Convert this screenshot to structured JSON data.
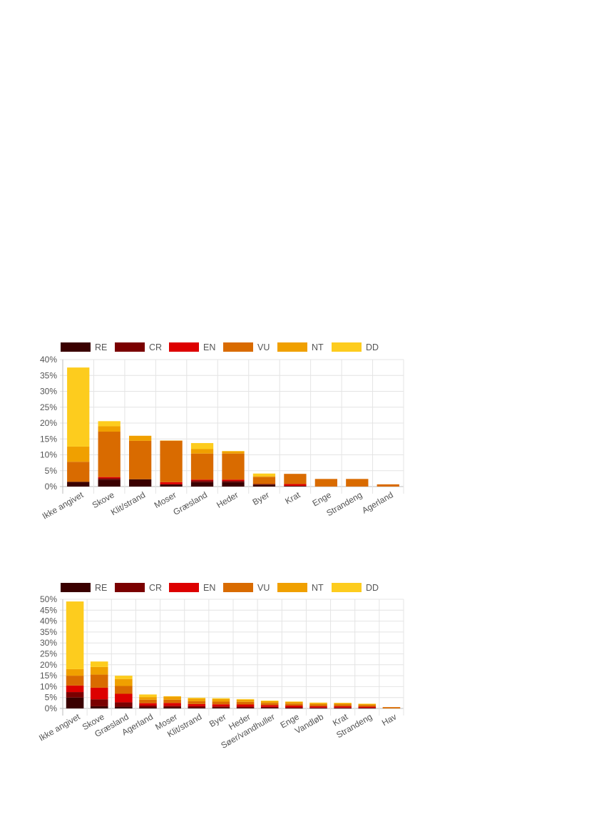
{
  "legend": [
    "RE",
    "CR",
    "EN",
    "VU",
    "NT",
    "DD"
  ],
  "colors": {
    "RE": "#3a0000",
    "CR": "#7a0000",
    "EN": "#dd0000",
    "VU": "#d96b00",
    "NT": "#f0a000",
    "DD": "#fdcc1e"
  },
  "chart_data": [
    {
      "type": "bar",
      "stacked": true,
      "legend_position": "top-left",
      "grid": true,
      "ylim": [
        0,
        40
      ],
      "yticks": [
        "0%",
        "5%",
        "10%",
        "15%",
        "20%",
        "25%",
        "30%",
        "35%",
        "40%"
      ],
      "categories": [
        "Ikke angivet",
        "Skove",
        "Klit/strand",
        "Moser",
        "Græsland",
        "Heder",
        "Byer",
        "Krat",
        "Enge",
        "Strandeng",
        "Agerland"
      ],
      "series": [
        {
          "name": "RE",
          "values": [
            1.5,
            2.2,
            2.3,
            0.7,
            1.4,
            1.4,
            0.6,
            0.2,
            0,
            0,
            0
          ]
        },
        {
          "name": "CR",
          "values": [
            0,
            0.4,
            0,
            0,
            0.5,
            0.4,
            0.2,
            0,
            0,
            0,
            0
          ]
        },
        {
          "name": "EN",
          "values": [
            0,
            0.4,
            0,
            0.7,
            0.3,
            0.4,
            0,
            0.6,
            0,
            0,
            0
          ]
        },
        {
          "name": "VU",
          "values": [
            6.3,
            14.3,
            12.1,
            13.0,
            8.2,
            8.2,
            2.2,
            3.2,
            2.4,
            2.4,
            0.7
          ]
        },
        {
          "name": "NT",
          "values": [
            4.8,
            1.7,
            1.6,
            0.1,
            1.4,
            0.7,
            0.3,
            0,
            0,
            0,
            0
          ]
        },
        {
          "name": "DD",
          "values": [
            24.9,
            1.6,
            0,
            0,
            1.9,
            0.1,
            0.8,
            0,
            0,
            0,
            0
          ]
        }
      ]
    },
    {
      "type": "bar",
      "stacked": true,
      "legend_position": "top-left",
      "grid": true,
      "ylim": [
        0,
        50
      ],
      "yticks": [
        "0%",
        "5%",
        "10%",
        "15%",
        "20%",
        "25%",
        "30%",
        "35%",
        "40%",
        "45%",
        "50%"
      ],
      "categories": [
        "Ikke angivet",
        "Skove",
        "Græsland",
        "Agerland",
        "Moser",
        "Klit/strand",
        "Byer",
        "Heder",
        "Søer/vandhuller",
        "Enge",
        "Vandløb",
        "Krat",
        "Strandeng",
        "Hav"
      ],
      "series": [
        {
          "name": "RE",
          "values": [
            5.0,
            1.0,
            0.8,
            0.5,
            0.5,
            0.3,
            0.3,
            0.2,
            0.2,
            0.1,
            0.1,
            0.1,
            0.1,
            0
          ]
        },
        {
          "name": "CR",
          "values": [
            2.5,
            3.2,
            2.0,
            0.8,
            0.7,
            0.7,
            0.6,
            0.6,
            0.5,
            0.4,
            0.3,
            0.3,
            0.2,
            0
          ]
        },
        {
          "name": "EN",
          "values": [
            3.0,
            5.3,
            3.9,
            1.1,
            1.3,
            1.0,
            1.0,
            1.0,
            0.8,
            0.8,
            0.6,
            0.6,
            0.5,
            0
          ]
        },
        {
          "name": "VU",
          "values": [
            4.5,
            6.0,
            3.6,
            1.6,
            1.5,
            1.3,
            1.2,
            1.2,
            1.0,
            0.9,
            0.8,
            0.8,
            0.7,
            0.6
          ]
        },
        {
          "name": "NT",
          "values": [
            3.0,
            3.5,
            3.2,
            1.2,
            1.4,
            1.2,
            1.2,
            1.0,
            0.8,
            0.8,
            0.6,
            0.6,
            0.5,
            0
          ]
        },
        {
          "name": "DD",
          "values": [
            31.0,
            2.5,
            1.5,
            1.2,
            0.2,
            0.4,
            0.4,
            0.3,
            0.3,
            0.2,
            0.3,
            0.2,
            0.2,
            0
          ]
        }
      ]
    }
  ]
}
